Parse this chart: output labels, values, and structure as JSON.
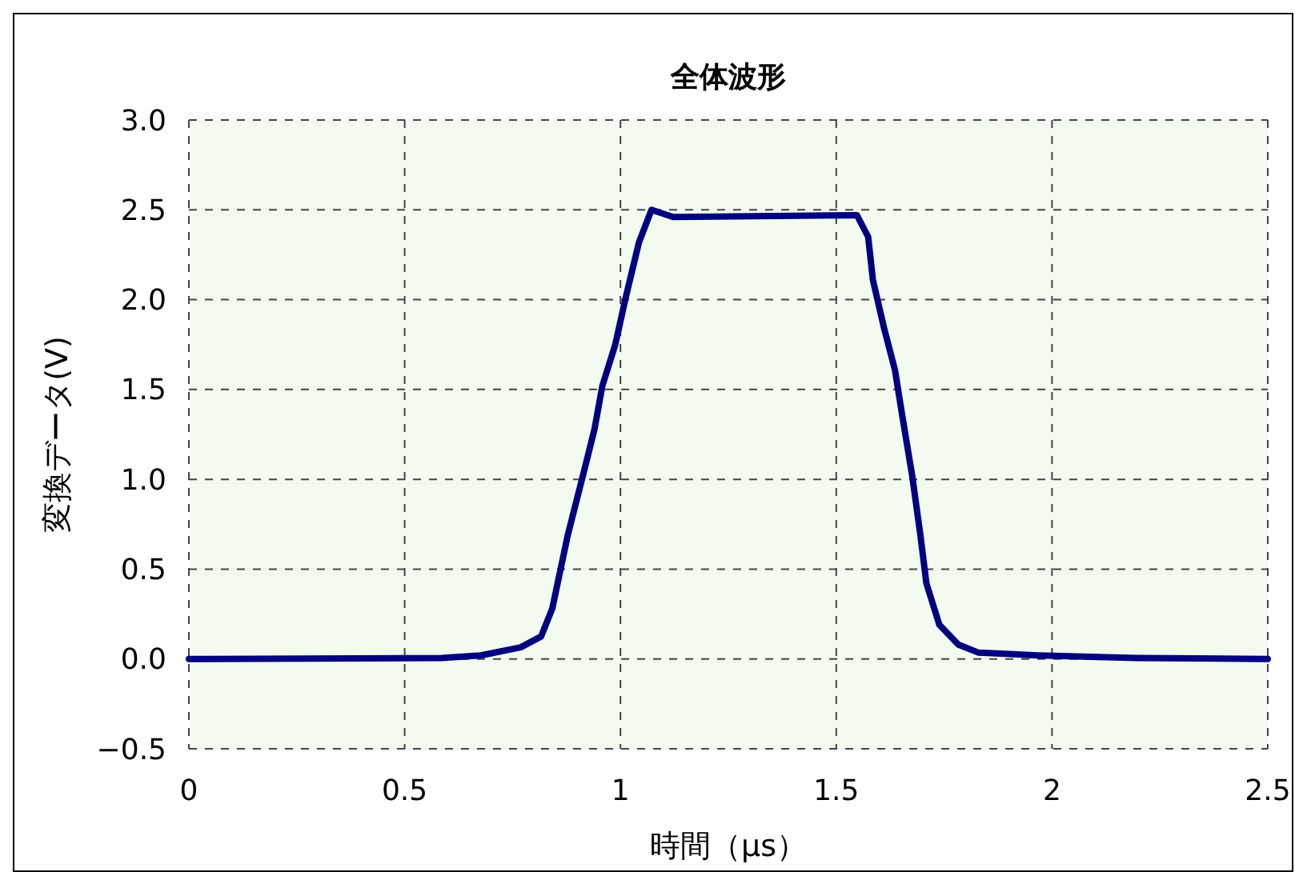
{
  "chart_data": {
    "type": "line",
    "title": "全体波形",
    "xlabel": "時間（μs）",
    "ylabel": "変換データ(V)",
    "xlim": [
      0,
      2.5
    ],
    "xticks": [
      0,
      0.5,
      1,
      1.5,
      2,
      2.5
    ],
    "ylim": [
      -0.5,
      3.0
    ],
    "yticks": [
      {
        "value": -0.5,
        "label": "−0.5"
      },
      {
        "value": 0,
        "label": "0.0"
      },
      {
        "value": 0.5,
        "label": "0.5"
      },
      {
        "value": 1,
        "label": "1.0"
      },
      {
        "value": 1.5,
        "label": "1.5"
      },
      {
        "value": 2,
        "label": "2.0"
      },
      {
        "value": 2.5,
        "label": "2.5"
      },
      {
        "value": 3,
        "label": "3.0"
      }
    ],
    "grid": true,
    "line_style": "solid",
    "series": [
      {
        "color": "#000080",
        "x": [
          0,
          0.586,
          0.677,
          0.769,
          0.816,
          0.842,
          0.878,
          0.915,
          0.94,
          0.958,
          0.988,
          1.013,
          1.043,
          1.072,
          1.122,
          1.548,
          1.574,
          1.585,
          1.611,
          1.636,
          1.654,
          1.676,
          1.695,
          1.709,
          1.739,
          1.783,
          1.83,
          1.966,
          2.196,
          2.5
        ],
        "values": [
          0,
          0.005,
          0.02,
          0.065,
          0.125,
          0.28,
          0.69,
          1.04,
          1.28,
          1.52,
          1.75,
          2.02,
          2.32,
          2.5,
          2.46,
          2.47,
          2.35,
          2.11,
          1.84,
          1.61,
          1.34,
          1.02,
          0.69,
          0.42,
          0.19,
          0.08,
          0.035,
          0.02,
          0.005,
          0
        ]
      }
    ]
  }
}
